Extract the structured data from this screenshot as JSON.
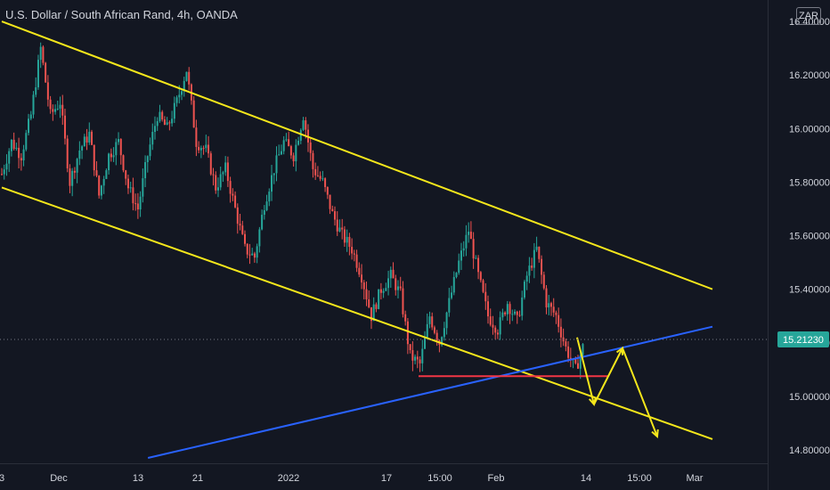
{
  "header": {
    "symbol_title": "U.S. Dollar / South African Rand, 4h, OANDA",
    "currency": "ZAR"
  },
  "colors": {
    "background": "#131722",
    "up": "#26a69a",
    "down": "#ef5350",
    "channel": "#f5e71b",
    "trendline": "#2962ff",
    "support": "#f23645",
    "forecast": "#f5e71b",
    "price_tag": "#26a69a",
    "text": "#d1d4dc"
  },
  "chart_data": {
    "type": "candlestick",
    "title": "U.S. Dollar / South African Rand, 4h, OANDA",
    "y_axis": {
      "position": "right",
      "range": [
        14.75,
        16.48
      ],
      "ticks": [
        "16.40000",
        "16.20000",
        "16.00000",
        "15.80000",
        "15.60000",
        "15.40000",
        "15.20000",
        "15.00000",
        "14.80000"
      ]
    },
    "x_axis": {
      "ticks": [
        "3",
        "Dec",
        "13",
        "21",
        "2022",
        "17",
        "15:00",
        "Feb",
        "14",
        "15:00",
        "Mar"
      ]
    },
    "current_price": "15.21230",
    "price_path": [
      [
        0,
        15.83
      ],
      [
        4,
        15.95
      ],
      [
        8,
        15.9
      ],
      [
        12,
        16.05
      ],
      [
        16,
        16.3
      ],
      [
        20,
        16.05
      ],
      [
        24,
        16.1
      ],
      [
        28,
        15.8
      ],
      [
        32,
        15.92
      ],
      [
        36,
        15.98
      ],
      [
        40,
        15.75
      ],
      [
        44,
        15.9
      ],
      [
        48,
        15.95
      ],
      [
        52,
        15.78
      ],
      [
        56,
        15.7
      ],
      [
        60,
        15.9
      ],
      [
        64,
        16.05
      ],
      [
        68,
        16.0
      ],
      [
        72,
        16.1
      ],
      [
        76,
        16.22
      ],
      [
        80,
        15.95
      ],
      [
        84,
        15.92
      ],
      [
        88,
        15.78
      ],
      [
        92,
        15.85
      ],
      [
        96,
        15.7
      ],
      [
        100,
        15.55
      ],
      [
        104,
        15.52
      ],
      [
        108,
        15.72
      ],
      [
        112,
        15.85
      ],
      [
        116,
        15.95
      ],
      [
        120,
        15.9
      ],
      [
        124,
        16.05
      ],
      [
        128,
        15.85
      ],
      [
        132,
        15.8
      ],
      [
        136,
        15.68
      ],
      [
        140,
        15.6
      ],
      [
        144,
        15.55
      ],
      [
        148,
        15.45
      ],
      [
        152,
        15.3
      ],
      [
        156,
        15.4
      ],
      [
        160,
        15.45
      ],
      [
        164,
        15.38
      ],
      [
        168,
        15.15
      ],
      [
        172,
        15.12
      ],
      [
        176,
        15.3
      ],
      [
        180,
        15.2
      ],
      [
        184,
        15.35
      ],
      [
        188,
        15.5
      ],
      [
        192,
        15.62
      ],
      [
        196,
        15.45
      ],
      [
        200,
        15.3
      ],
      [
        204,
        15.25
      ],
      [
        208,
        15.35
      ],
      [
        212,
        15.28
      ],
      [
        216,
        15.45
      ],
      [
        220,
        15.55
      ],
      [
        224,
        15.35
      ],
      [
        228,
        15.3
      ],
      [
        232,
        15.18
      ],
      [
        236,
        15.1
      ],
      [
        240,
        15.21
      ]
    ],
    "drawings": {
      "channel_upper": [
        [
          0,
          16.4
        ],
        [
          3.5,
          15.4
        ]
      ],
      "channel_lower": [
        [
          0,
          15.78
        ],
        [
          3.5,
          14.84
        ]
      ],
      "blue_trendline": [
        [
          0.72,
          14.77
        ],
        [
          3.5,
          15.26
        ]
      ],
      "support_line": {
        "y": 15.075
      },
      "forecast_path": [
        15.22,
        14.97,
        15.18,
        14.85
      ]
    }
  }
}
